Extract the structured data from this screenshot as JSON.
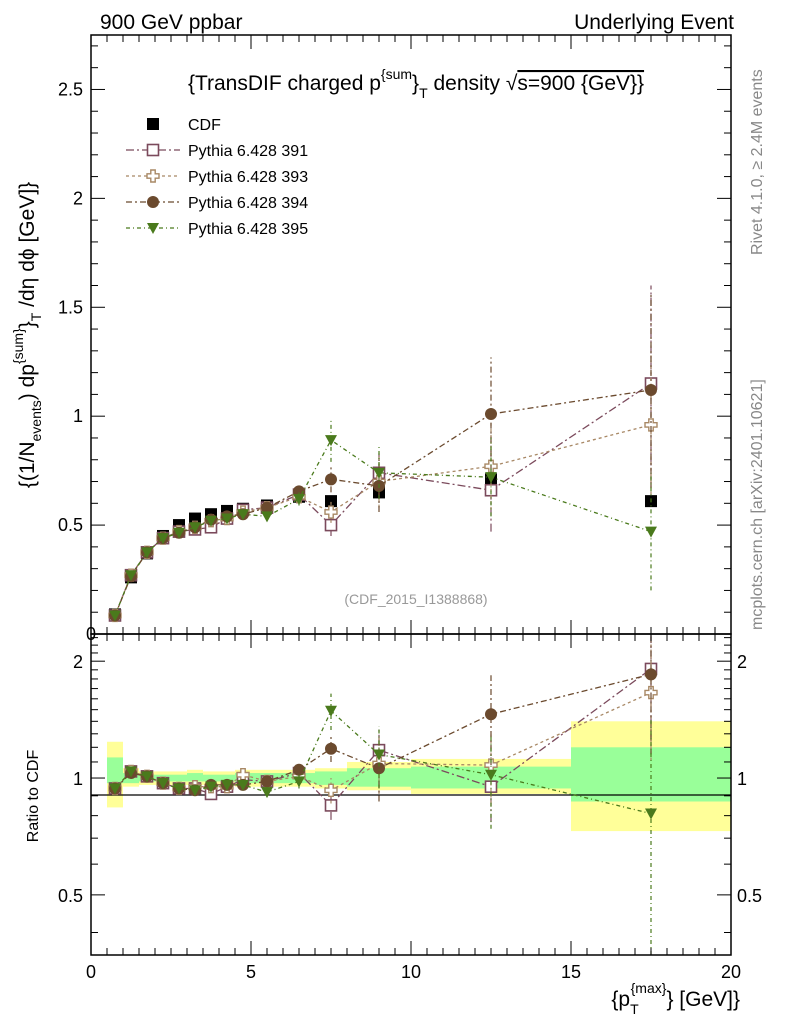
{
  "header": {
    "left": "900 GeV ppbar",
    "right": "Underlying Event",
    "side_top": "Rivet 4.1.0, ≥ 2.4M events",
    "side_bottom": "mcplots.cern.ch [arXiv:2401.10621]"
  },
  "chart_data": [
    {
      "type": "scatter",
      "panel": "main",
      "title": "{TransDIF charged p^{sum}_T density √s=900 {GeV}}",
      "title_parts": {
        "a": "{TransDIF charged p",
        "sup": "{sum",
        "close": "}",
        "sub": "T",
        "b": " density √",
        "c": "s=900 {GeV}}"
      },
      "ylabel_parts": {
        "a": "{(1/N",
        "sub1": "events",
        "b": ") dp",
        "sup": "{sum}",
        "c": "}",
        "sub2": "T",
        "d": " /dη  dϕ [GeV]}"
      },
      "watermark": "(CDF_2015_I1388868)",
      "xlim": [
        0,
        20
      ],
      "ylim": [
        0,
        2.75
      ],
      "yticks": [
        {
          "v": 0.5,
          "label": "0.5"
        },
        {
          "v": 1.0,
          "label": "1"
        },
        {
          "v": 1.5,
          "label": "1.5"
        },
        {
          "v": 2.0,
          "label": "2"
        },
        {
          "v": 2.5,
          "label": "2.5"
        }
      ],
      "y_origin_label": "0",
      "x": [
        0.75,
        1.25,
        1.75,
        2.25,
        2.75,
        3.25,
        3.75,
        4.25,
        4.75,
        5.5,
        6.5,
        7.5,
        9.0,
        12.5,
        17.5
      ],
      "series": [
        {
          "name": "CDF",
          "marker": "square-filled",
          "color": "#000000",
          "values": [
            0.09,
            0.26,
            0.37,
            0.45,
            0.5,
            0.53,
            0.55,
            0.565,
            0.575,
            0.59,
            0.63,
            0.61,
            0.65,
            0.71,
            0.61
          ],
          "err": [
            0,
            0,
            0,
            0,
            0,
            0,
            0,
            0,
            0,
            0,
            0,
            0,
            0,
            0,
            0
          ]
        },
        {
          "name": "Pythia 6.428 391",
          "marker": "square-open",
          "color": "#7b4a5c",
          "values": [
            0.085,
            0.27,
            0.375,
            0.44,
            0.47,
            0.48,
            0.49,
            0.53,
            0.57,
            0.58,
            0.64,
            0.5,
            0.74,
            0.66,
            1.15
          ],
          "err": [
            0,
            0,
            0,
            0,
            0,
            0,
            0,
            0,
            0,
            0,
            0.03,
            0.05,
            0.09,
            0.19,
            0.45
          ]
        },
        {
          "name": "Pythia 6.428 393",
          "marker": "plus-open",
          "color": "#a88865",
          "values": [
            0.085,
            0.27,
            0.375,
            0.44,
            0.47,
            0.49,
            0.52,
            0.53,
            0.56,
            0.58,
            0.63,
            0.56,
            0.7,
            0.77,
            0.96
          ],
          "err": [
            0,
            0,
            0,
            0,
            0,
            0,
            0,
            0,
            0,
            0,
            0.03,
            0.05,
            0.12,
            0.2,
            0.32
          ]
        },
        {
          "name": "Pythia 6.428 394",
          "marker": "circle-filled",
          "color": "#6b4a2e",
          "values": [
            0.085,
            0.265,
            0.375,
            0.44,
            0.465,
            0.49,
            0.525,
            0.54,
            0.55,
            0.58,
            0.655,
            0.71,
            0.68,
            1.01,
            1.12
          ],
          "err": [
            0,
            0,
            0,
            0,
            0,
            0,
            0,
            0,
            0,
            0,
            0.03,
            0.06,
            0.12,
            0.26,
            0.45
          ]
        },
        {
          "name": "Pythia 6.428 395",
          "marker": "triangle-down-filled",
          "color": "#4a7a1c",
          "values": [
            0.085,
            0.27,
            0.375,
            0.44,
            0.465,
            0.49,
            0.52,
            0.53,
            0.55,
            0.54,
            0.62,
            0.89,
            0.74,
            0.72,
            0.47
          ],
          "err": [
            0,
            0,
            0,
            0,
            0,
            0,
            0,
            0,
            0,
            0,
            0.03,
            0.1,
            0.12,
            0.18,
            0.27
          ]
        }
      ]
    },
    {
      "type": "scatter",
      "panel": "ratio",
      "ylabel": "Ratio to CDF",
      "xlabel_parts": {
        "a": "{p",
        "sub": "T",
        "sup": "{max}",
        "b": "} [GeV]}"
      },
      "xlim": [
        0,
        20
      ],
      "ylim": [
        0.35,
        2.35
      ],
      "xticks": [
        {
          "v": 0,
          "label": "0"
        },
        {
          "v": 5,
          "label": "5"
        },
        {
          "v": 10,
          "label": "10"
        },
        {
          "v": 15,
          "label": "15"
        },
        {
          "v": 20,
          "label": "20"
        }
      ],
      "yticks": [
        {
          "v": 0.5,
          "label": "0.5"
        },
        {
          "v": 1,
          "label": "1"
        },
        {
          "v": 2,
          "label": "2"
        }
      ],
      "x": [
        0.75,
        1.25,
        1.75,
        2.25,
        2.75,
        3.25,
        3.75,
        4.25,
        4.75,
        5.5,
        6.5,
        7.5,
        9.0,
        12.5,
        17.5
      ],
      "bins": [
        [
          0.5,
          1.0
        ],
        [
          1.0,
          1.5
        ],
        [
          1.5,
          2.0
        ],
        [
          2.0,
          2.5
        ],
        [
          2.5,
          3.0
        ],
        [
          3.0,
          3.5
        ],
        [
          3.5,
          4.0
        ],
        [
          4.0,
          4.5
        ],
        [
          4.5,
          5.0
        ],
        [
          5.0,
          6.0
        ],
        [
          6.0,
          7.0
        ],
        [
          7.0,
          8.0
        ],
        [
          8.0,
          10.0
        ],
        [
          10.0,
          15.0
        ],
        [
          15.0,
          20.0
        ]
      ],
      "band_yellow": [
        [
          0.84,
          1.24
        ],
        [
          0.95,
          1.06
        ],
        [
          0.96,
          1.04
        ],
        [
          0.96,
          1.04
        ],
        [
          0.96,
          1.04
        ],
        [
          0.96,
          1.05
        ],
        [
          0.96,
          1.04
        ],
        [
          0.96,
          1.04
        ],
        [
          0.95,
          1.05
        ],
        [
          0.95,
          1.05
        ],
        [
          0.95,
          1.05
        ],
        [
          0.94,
          1.06
        ],
        [
          0.93,
          1.1
        ],
        [
          0.91,
          1.12
        ],
        [
          0.73,
          1.4
        ]
      ],
      "band_green": [
        [
          0.97,
          1.13
        ],
        [
          0.97,
          1.03
        ],
        [
          0.98,
          1.02
        ],
        [
          0.98,
          1.02
        ],
        [
          0.98,
          1.02
        ],
        [
          0.98,
          1.03
        ],
        [
          0.98,
          1.02
        ],
        [
          0.98,
          1.02
        ],
        [
          0.97,
          1.03
        ],
        [
          0.97,
          1.03
        ],
        [
          0.97,
          1.03
        ],
        [
          0.96,
          1.04
        ],
        [
          0.95,
          1.06
        ],
        [
          0.94,
          1.07
        ],
        [
          0.87,
          1.2
        ]
      ],
      "series": [
        {
          "name": "Pythia 6.428 391",
          "marker": "square-open",
          "color": "#7b4a5c",
          "values": [
            0.94,
            1.04,
            1.01,
            0.97,
            0.94,
            0.94,
            0.91,
            0.95,
            0.99,
            0.98,
            1.03,
            0.85,
            1.18,
            0.95,
            1.91
          ],
          "err": [
            0,
            0,
            0,
            0,
            0,
            0,
            0,
            0,
            0,
            0,
            0.04,
            0.07,
            0.16,
            0.18,
            0.65
          ]
        },
        {
          "name": "Pythia 6.428 393",
          "marker": "plus-open",
          "color": "#a88865",
          "values": [
            0.94,
            1.04,
            1.01,
            0.97,
            0.94,
            0.95,
            0.95,
            0.95,
            1.02,
            0.98,
            1.01,
            0.93,
            1.09,
            1.08,
            1.66
          ],
          "err": [
            0,
            0,
            0,
            0,
            0,
            0,
            0,
            0,
            0,
            0,
            0.04,
            0.07,
            0.18,
            0.22,
            0.55
          ]
        },
        {
          "name": "Pythia 6.428 394",
          "marker": "circle-filled",
          "color": "#6b4a2e",
          "values": [
            0.94,
            1.03,
            1.01,
            0.97,
            0.94,
            0.93,
            0.96,
            0.96,
            0.96,
            0.98,
            1.05,
            1.19,
            1.06,
            1.46,
            1.85
          ],
          "err": [
            0,
            0,
            0,
            0,
            0,
            0,
            0,
            0,
            0,
            0,
            0.04,
            0.09,
            0.19,
            0.38,
            0.7
          ]
        },
        {
          "name": "Pythia 6.428 395",
          "marker": "triangle-down-filled",
          "color": "#4a7a1c",
          "values": [
            0.94,
            1.04,
            1.01,
            0.97,
            0.94,
            0.93,
            0.95,
            0.96,
            0.96,
            0.92,
            0.98,
            1.49,
            1.15,
            1.02,
            0.81
          ],
          "err": [
            0,
            0,
            0,
            0,
            0,
            0,
            0,
            0,
            0,
            0,
            0.04,
            0.16,
            0.21,
            0.28,
            0.6
          ]
        }
      ]
    }
  ]
}
